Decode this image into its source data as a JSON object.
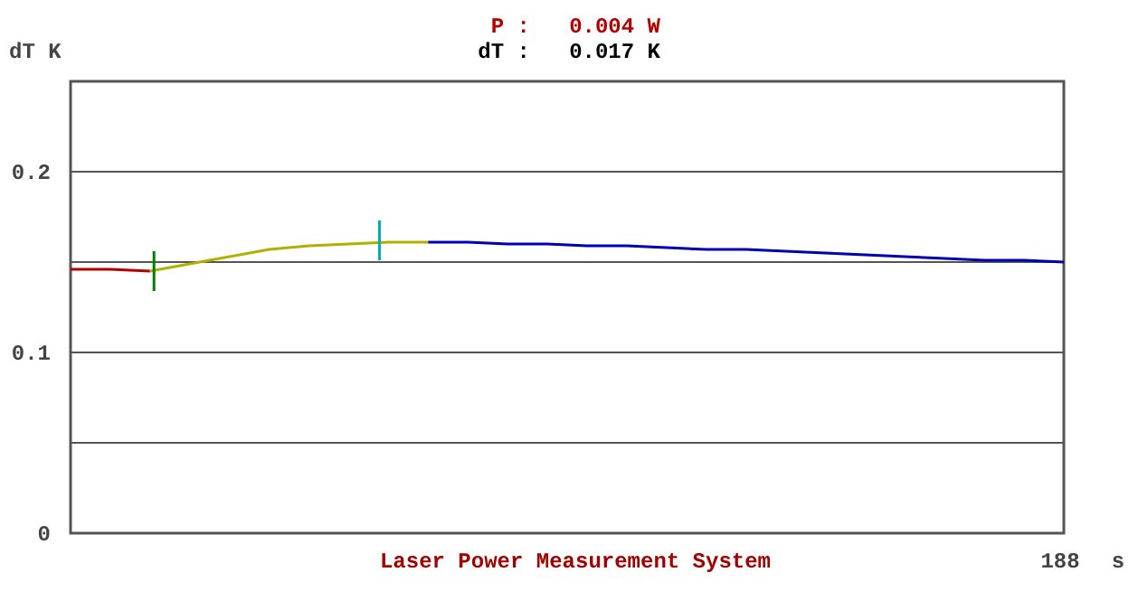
{
  "chart_data": {
    "type": "line",
    "title": "Laser Power Measurement System",
    "ylabel": "dT K",
    "xlabel": "s",
    "annotations": [
      "P :   0.004 W",
      "dT :   0.017 K",
      "188"
    ],
    "categories": [
      null,
      null,
      null,
      null,
      null,
      null,
      null,
      null,
      null,
      null,
      null,
      null,
      null,
      null,
      null,
      null,
      null,
      null,
      null,
      null,
      null,
      null,
      null,
      null,
      null,
      null
    ],
    "ylim": [
      0,
      0.25
    ],
    "yticks": [
      {
        "value": 0,
        "label": "0"
      },
      {
        "value": 0.05,
        "label": null
      },
      {
        "value": 0.1,
        "label": "0.1"
      },
      {
        "value": 0.15,
        "label": null
      },
      {
        "value": 0.2,
        "label": "0.2"
      }
    ],
    "grid": "y",
    "marker": "none",
    "line_style": "solid",
    "series": [
      {
        "color": "#b00000",
        "values": [
          0.146,
          0.146,
          0.145,
          null,
          null,
          null,
          null,
          null,
          null,
          null,
          null,
          null,
          null,
          null,
          null,
          null,
          null,
          null,
          null,
          null,
          null,
          null,
          null,
          null,
          null,
          null
        ]
      },
      {
        "color": "#b0b000",
        "values": [
          null,
          null,
          0.145,
          0.149,
          0.153,
          0.157,
          0.159,
          0.16,
          0.161,
          0.161,
          null,
          null,
          null,
          null,
          null,
          null,
          null,
          null,
          null,
          null,
          null,
          null,
          null,
          null,
          null,
          null
        ]
      },
      {
        "color": "#0000b0",
        "values": [
          null,
          null,
          null,
          null,
          null,
          null,
          null,
          null,
          null,
          0.161,
          0.161,
          0.16,
          0.16,
          0.159,
          0.159,
          0.158,
          0.157,
          0.157,
          0.156,
          0.155,
          0.154,
          0.153,
          0.152,
          0.151,
          0.151,
          0.15
        ]
      }
    ]
  }
}
